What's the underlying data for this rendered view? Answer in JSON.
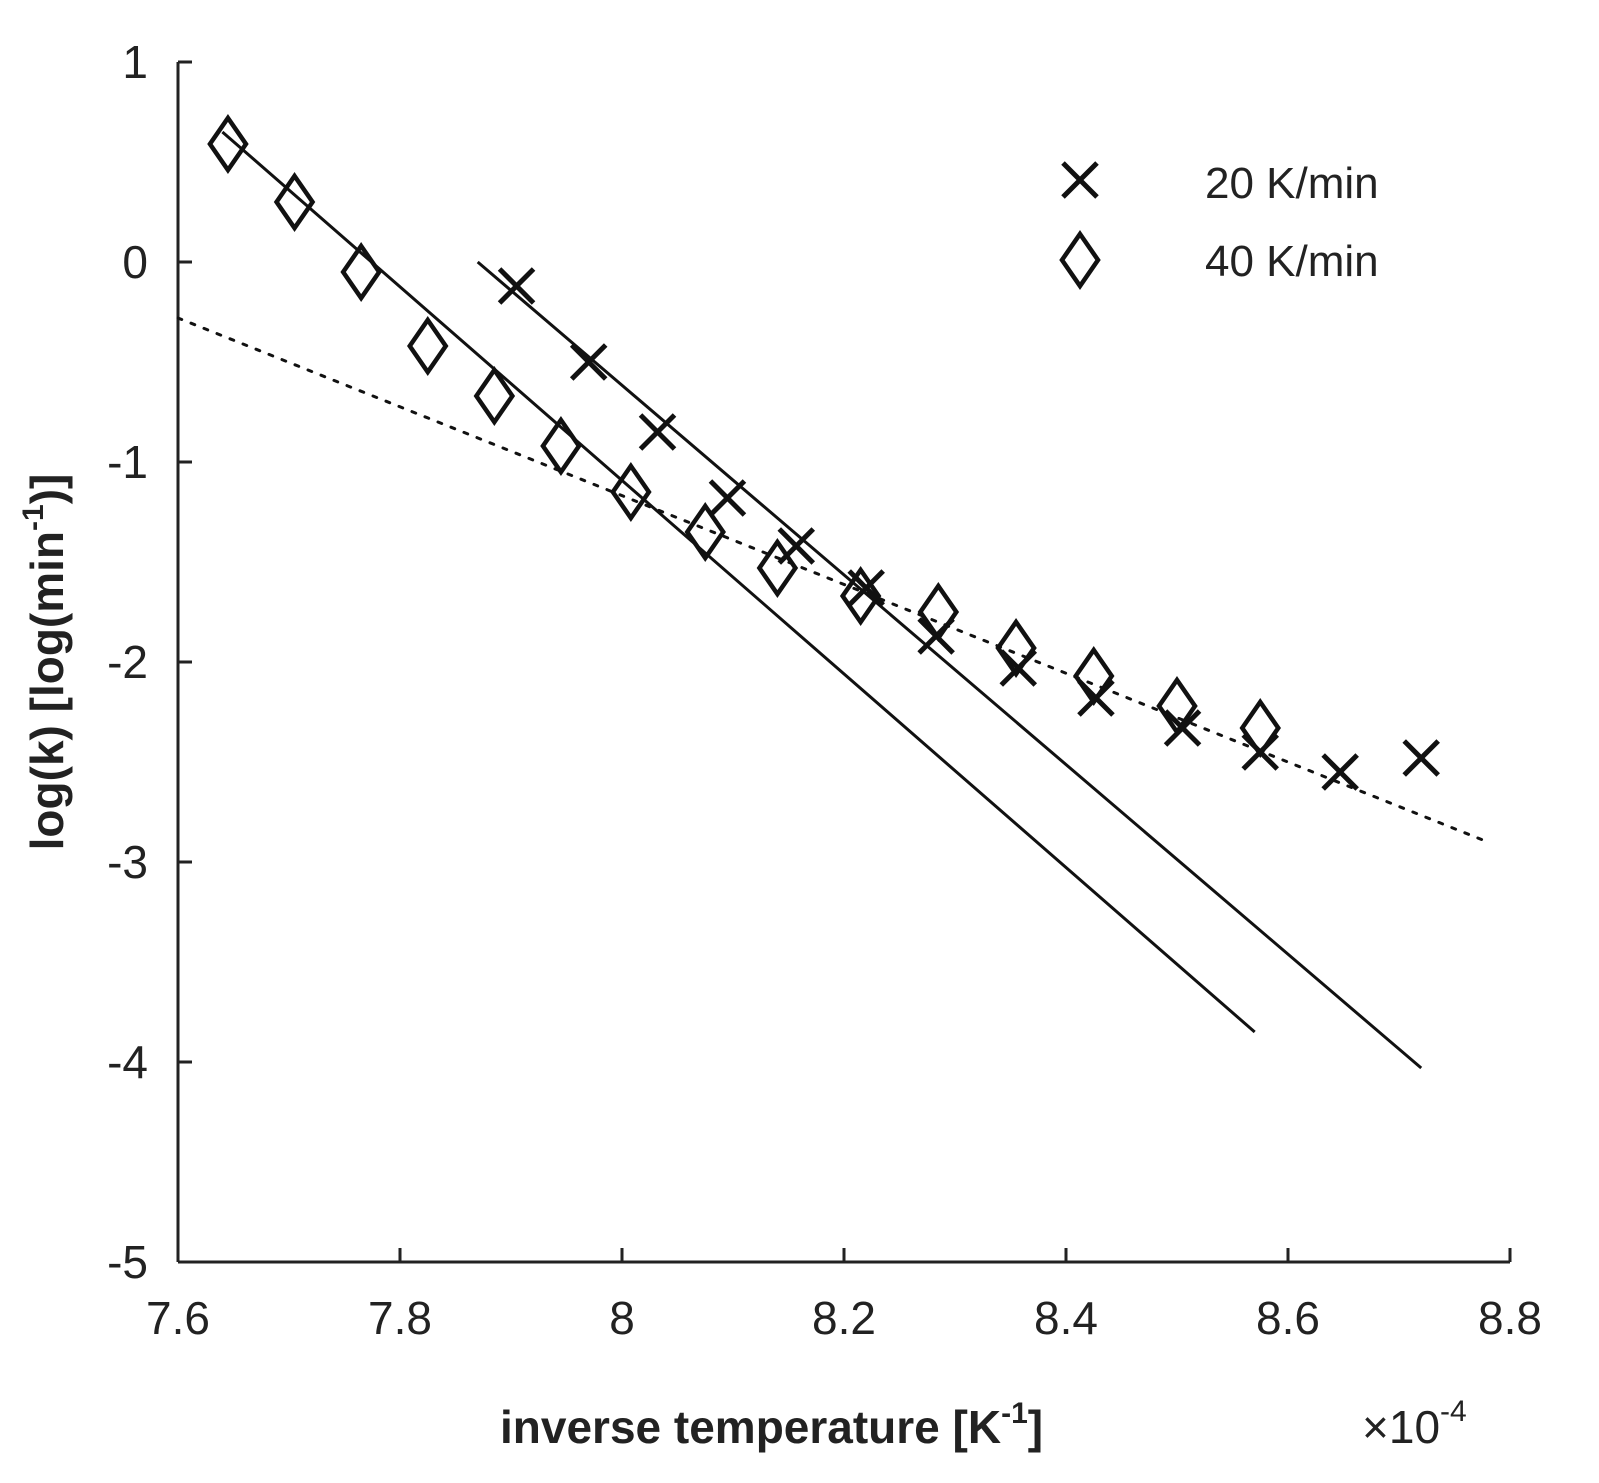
{
  "chart_data": {
    "type": "scatter",
    "title": "",
    "xlabel": {
      "main": "inverse temperature [K",
      "sup": "-1",
      "close": "]"
    },
    "ylabel": {
      "main": "log(k) [log(min",
      "sup": "-1",
      "close": ")]"
    },
    "x_multiplier": {
      "symbol": "×10",
      "exp": "-4"
    },
    "xlim": [
      7.6,
      8.8
    ],
    "ylim": [
      -5,
      1
    ],
    "xticks": [
      7.6,
      7.8,
      8.0,
      8.2,
      8.4,
      8.6,
      8.8
    ],
    "xtick_labels": [
      "7.6",
      "7.8",
      "8",
      "8.2",
      "8.4",
      "8.6",
      "8.8"
    ],
    "yticks": [
      1,
      0,
      -1,
      -2,
      -3,
      -4,
      -5
    ],
    "ytick_labels": [
      "1",
      "0",
      "-1",
      "-2",
      "-3",
      "-4",
      "-5"
    ],
    "legend_position": "top-right",
    "series": [
      {
        "name": "20 K/min",
        "marker": "x",
        "x": [
          7.905,
          7.97,
          8.032,
          8.095,
          8.157,
          8.22,
          8.283,
          8.357,
          8.427,
          8.505,
          8.575,
          8.647,
          8.72
        ],
        "y": [
          -0.12,
          -0.5,
          -0.85,
          -1.18,
          -1.42,
          -1.63,
          -1.87,
          -2.03,
          -2.18,
          -2.33,
          -2.45,
          -2.55,
          -2.48
        ]
      },
      {
        "name": "40 K/min",
        "marker": "diamond",
        "x": [
          7.645,
          7.705,
          7.765,
          7.825,
          7.885,
          7.945,
          8.008,
          8.075,
          8.14,
          8.215,
          8.285,
          8.355,
          8.425,
          8.5,
          8.575
        ],
        "y": [
          0.59,
          0.3,
          -0.05,
          -0.42,
          -0.67,
          -0.92,
          -1.15,
          -1.35,
          -1.53,
          -1.67,
          -1.75,
          -1.93,
          -2.07,
          -2.22,
          -2.33
        ]
      }
    ],
    "fit_lines": [
      {
        "name": "40 K/min linear fit",
        "style": "solid",
        "x": [
          7.64,
          8.57
        ],
        "y": [
          0.65,
          -3.85
        ]
      },
      {
        "name": "20 K/min linear fit",
        "style": "solid",
        "x": [
          7.87,
          8.72
        ],
        "y": [
          0.0,
          -4.03
        ]
      },
      {
        "name": "low-temperature fit",
        "style": "dotted",
        "x": [
          7.6,
          8.78
        ],
        "y": [
          -0.28,
          -2.9
        ]
      }
    ]
  }
}
